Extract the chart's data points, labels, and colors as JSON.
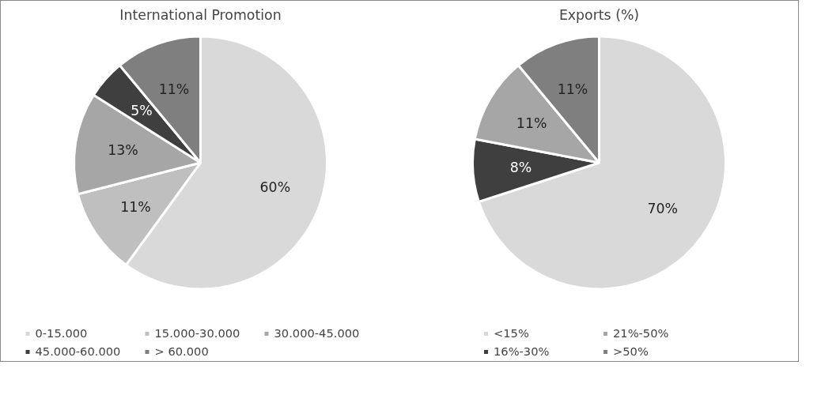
{
  "chart_data": [
    {
      "type": "pie",
      "title": "International Promotion",
      "categories": [
        "0-15.000",
        "15.000-30.000",
        "30.000-45.000",
        "45.000-60.000",
        "> 60.000"
      ],
      "values": [
        60,
        11,
        13,
        5,
        11
      ],
      "colors": [
        "#d9d9d9",
        "#bfbfbf",
        "#a6a6a6",
        "#3f3f3f",
        "#7f7f7f"
      ],
      "value_labels": [
        "60%",
        "11%",
        "13%",
        "5%",
        "11%"
      ],
      "legend": "bottom"
    },
    {
      "type": "pie",
      "title": "Exports (%)",
      "categories": [
        "<15%",
        "16%-30%",
        "21%-50%",
        ">50%"
      ],
      "values": [
        70,
        8,
        11,
        11
      ],
      "colors": [
        "#d9d9d9",
        "#3f3f3f",
        "#a6a6a6",
        "#7f7f7f"
      ],
      "value_labels": [
        "70%",
        "8%",
        "11%",
        "11%"
      ],
      "legend": "bottom"
    }
  ]
}
